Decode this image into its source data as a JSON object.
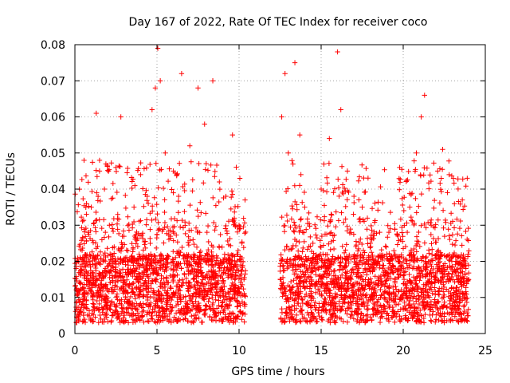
{
  "chart_data": {
    "type": "scatter",
    "title": "Day 167 of 2022, Rate Of TEC Index for receiver coco",
    "xlabel": "GPS time / hours",
    "ylabel": "ROTI / TECUs",
    "xlim": [
      0,
      25
    ],
    "ylim": [
      0,
      0.08
    ],
    "x_ticks": [
      "0",
      "5",
      "10",
      "15",
      "20",
      "25"
    ],
    "y_ticks": [
      "0",
      "0.01",
      "0.02",
      "0.03",
      "0.04",
      "0.05",
      "0.06",
      "0.07",
      "0.08"
    ],
    "grid": true,
    "marker": "+",
    "color": "#ff0000",
    "data_gap_hours": [
      10.4,
      12.5
    ],
    "series": [
      {
        "name": "ROTI",
        "points": [
          [
            0.2,
            0.012
          ],
          [
            0.5,
            0.02
          ],
          [
            0.8,
            0.028
          ],
          [
            1.0,
            0.035
          ],
          [
            1.3,
            0.061
          ],
          [
            1.5,
            0.045
          ],
          [
            1.8,
            0.04
          ],
          [
            2.1,
            0.03
          ],
          [
            2.5,
            0.046
          ],
          [
            2.8,
            0.06
          ],
          [
            3.2,
            0.02
          ],
          [
            3.6,
            0.035
          ],
          [
            4.0,
            0.044
          ],
          [
            4.4,
            0.038
          ],
          [
            4.7,
            0.062
          ],
          [
            4.9,
            0.068
          ],
          [
            5.05,
            0.079
          ],
          [
            5.2,
            0.07
          ],
          [
            5.5,
            0.05
          ],
          [
            6.0,
            0.045
          ],
          [
            6.5,
            0.072
          ],
          [
            7.0,
            0.052
          ],
          [
            7.5,
            0.068
          ],
          [
            7.9,
            0.058
          ],
          [
            8.4,
            0.07
          ],
          [
            8.8,
            0.042
          ],
          [
            9.2,
            0.038
          ],
          [
            9.6,
            0.055
          ],
          [
            10.0,
            0.03
          ],
          [
            10.3,
            0.015
          ],
          [
            12.6,
            0.06
          ],
          [
            12.8,
            0.072
          ],
          [
            13.0,
            0.05
          ],
          [
            13.4,
            0.075
          ],
          [
            13.7,
            0.055
          ],
          [
            14.0,
            0.035
          ],
          [
            14.5,
            0.025
          ],
          [
            15.0,
            0.04
          ],
          [
            15.5,
            0.054
          ],
          [
            16.0,
            0.078
          ],
          [
            16.2,
            0.062
          ],
          [
            16.6,
            0.045
          ],
          [
            17.0,
            0.038
          ],
          [
            17.5,
            0.035
          ],
          [
            18.0,
            0.025
          ],
          [
            18.5,
            0.02
          ],
          [
            19.0,
            0.015
          ],
          [
            19.5,
            0.014
          ],
          [
            20.0,
            0.016
          ],
          [
            20.4,
            0.035
          ],
          [
            20.8,
            0.05
          ],
          [
            21.1,
            0.06
          ],
          [
            21.3,
            0.066
          ],
          [
            21.7,
            0.03
          ],
          [
            22.1,
            0.045
          ],
          [
            22.4,
            0.051
          ],
          [
            22.8,
            0.044
          ],
          [
            23.2,
            0.02
          ],
          [
            23.6,
            0.037
          ],
          [
            23.9,
            0.043
          ]
        ]
      }
    ]
  }
}
